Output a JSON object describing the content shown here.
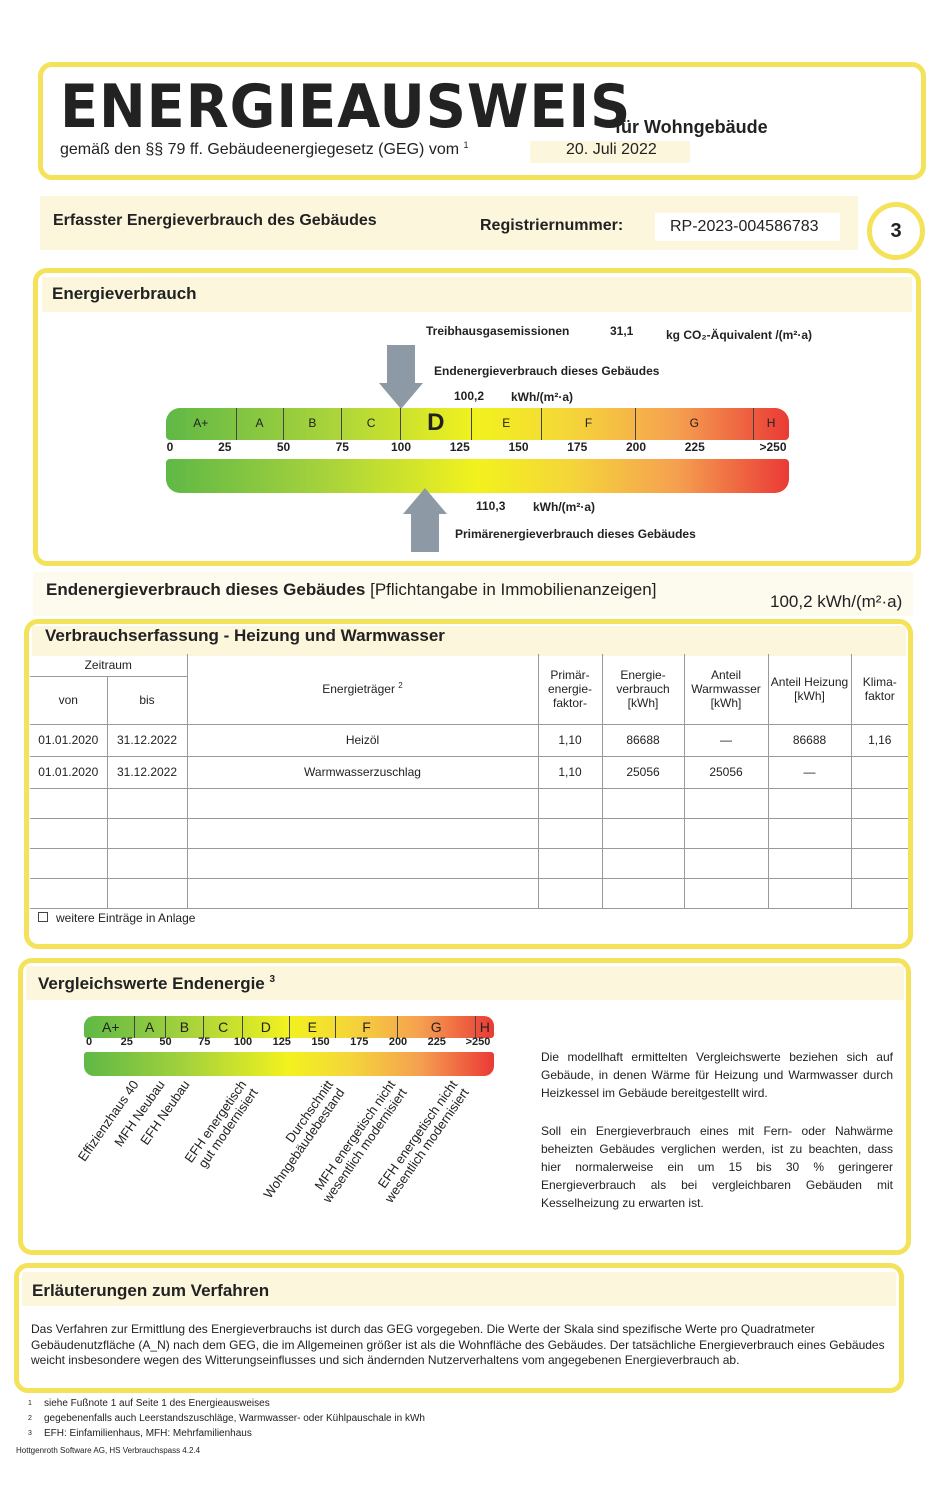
{
  "header": {
    "title": "ENERGIEAUSWEIS",
    "subtitle": "für Wohngebäude",
    "law": "gemäß den §§ 79 ff. Gebäudeenergiegesetz (GEG) vom",
    "law_sup": "1",
    "date": "20. Juli 2022"
  },
  "reg": {
    "label": "Erfasster Energieverbrauch des Gebäudes",
    "reg_label": "Registriernummer:",
    "reg_value": "RP-2023-004586783",
    "page": "3"
  },
  "energy": {
    "heading": "Energieverbrauch",
    "ghg_label": "Treibhausgasemissionen",
    "ghg_value": "31,1",
    "ghg_unit": "kg CO₂-Äquivalent /(m²·a)",
    "end_label": "Endenergieverbrauch dieses Gebäudes",
    "end_value": "100,2",
    "end_unit": "kWh/(m²·a)",
    "end_numeric": 100.2,
    "primary_label": "Primärenergieverbrauch dieses Gebäudes",
    "primary_value": "110,3",
    "primary_unit": "kWh/(m²·a)",
    "primary_numeric": 110.3,
    "current_class": "D",
    "classes": [
      {
        "label": "A+",
        "from": 0,
        "to": 30
      },
      {
        "label": "A",
        "from": 30,
        "to": 50
      },
      {
        "label": "B",
        "from": 50,
        "to": 75
      },
      {
        "label": "C",
        "from": 75,
        "to": 100
      },
      {
        "label": "D",
        "from": 100,
        "to": 130
      },
      {
        "label": "E",
        "from": 130,
        "to": 160
      },
      {
        "label": "F",
        "from": 160,
        "to": 200
      },
      {
        "label": "G",
        "from": 200,
        "to": 250
      },
      {
        "label": "H",
        "from": 250,
        "to": 265
      }
    ],
    "ticks": [
      "0",
      "25",
      "50",
      "75",
      "100",
      "125",
      "150",
      "175",
      "200",
      "225",
      ">250"
    ]
  },
  "summary": {
    "label": "Endenergieverbrauch dieses Gebäudes",
    "note": "[Pflichtangabe in Immobilienanzeigen]",
    "value": "100,2 kWh/(m²·a)"
  },
  "table": {
    "heading": "Verbrauchserfassung - Heizung und Warmwasser",
    "h_zeitraum": "Zeitraum",
    "h_von": "von",
    "h_bis": "bis",
    "h_traeger": "Energieträger",
    "h_traeger_sup": "2",
    "h_primaer": "Primär-energie-faktor-",
    "h_verbrauch": "Energie-verbrauch [kWh]",
    "h_ww": "Anteil Warmwasser [kWh]",
    "h_heiz": "Anteil Heizung [kWh]",
    "h_klima": "Klima-faktor",
    "rows": [
      [
        "01.01.2020",
        "31.12.2022",
        "Heizöl",
        "1,10",
        "86688",
        "—",
        "86688",
        "1,16"
      ],
      [
        "01.01.2020",
        "31.12.2022",
        "Warmwasserzuschlag",
        "1,10",
        "25056",
        "25056",
        "—",
        ""
      ]
    ],
    "more": "weitere Einträge in Anlage"
  },
  "compare": {
    "heading": "Vergleichswerte Endenergie",
    "heading_sup": "3",
    "classes": [
      "A+",
      "A",
      "B",
      "C",
      "D",
      "E",
      "F",
      "G",
      "H"
    ],
    "ticks": [
      "0",
      "25",
      "50",
      "75",
      "100",
      "125",
      "150",
      "175",
      "200",
      "225",
      ">250"
    ],
    "labels": [
      "Effizienzhaus 40",
      "MFH Neubau",
      "EFH Neubau",
      "EFH energetisch\ngut modernisiert",
      "Durchschnitt\nWohngebäudebestand",
      "MFH energetisch nicht\nwesentlich modernisiert",
      "EFH energetisch nicht\nwesentlich modernisiert"
    ],
    "text1": "Die modellhaft ermittelten Vergleichswerte beziehen sich auf Gebäude, in denen Wärme für Heizung und Warmwasser durch Heizkessel im Gebäude bereitgestellt wird.",
    "text2": "Soll ein Energieverbrauch eines mit Fern- oder Nahwärme beheizten Gebäudes verglichen werden, ist zu beachten, dass hier normalerweise ein um 15 bis 30 % geringerer Energieverbrauch als bei vergleichbaren Gebäuden mit Kesselheizung zu erwarten ist."
  },
  "explain": {
    "heading": "Erläuterungen zum Verfahren",
    "text": "Das Verfahren zur Ermittlung des Energieverbrauchs ist durch das GEG vorgegeben. Die Werte der Skala sind spezifische Werte pro Quadratmeter Gebäudenutzfläche (A_N) nach dem GEG, die im Allgemeinen größer ist als die Wohnfläche des Gebäudes. Der tatsächliche Energieverbrauch eines Gebäudes weicht insbesondere wegen des Witterungseinflusses und sich ändernden Nutzerverhaltens vom angegebenen Energieverbrauch ab."
  },
  "footnotes": [
    {
      "n": "1",
      "text": "siehe Fußnote 1 auf Seite 1 des Energieausweises"
    },
    {
      "n": "2",
      "text": "gegebenenfalls auch Leerstandszuschläge, Warmwasser- oder Kühlpauschale in kWh"
    },
    {
      "n": "3",
      "text": "EFH: Einfamilienhaus, MFH: Mehrfamilienhaus"
    }
  ],
  "software": "Hottgenroth Software AG, HS Verbrauchspass 4.2.4"
}
